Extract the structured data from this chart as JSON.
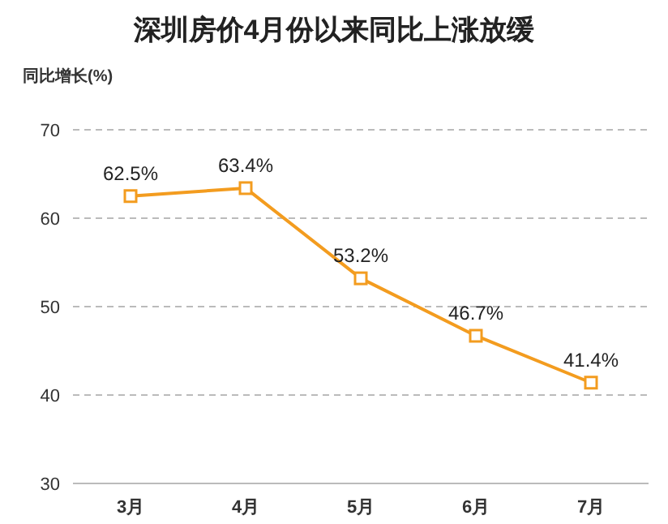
{
  "chart_data": {
    "type": "line",
    "title": "深圳房价4月份以来同比上涨放缓",
    "ylabel": "同比增长(%)",
    "categories": [
      "3月",
      "4月",
      "5月",
      "6月",
      "7月"
    ],
    "series": [
      {
        "color": "#f39c1f",
        "values": [
          62.5,
          63.4,
          53.2,
          46.7,
          41.4
        ],
        "value_labels": [
          "62.5%",
          "63.4%",
          "53.2%",
          "46.7%",
          "41.4%"
        ]
      }
    ],
    "ylim": [
      30,
      70
    ],
    "yticks": [
      30,
      40,
      50,
      60,
      70
    ],
    "grid": "y",
    "marker": "square",
    "line_style": "solid",
    "data_labels": false
  }
}
